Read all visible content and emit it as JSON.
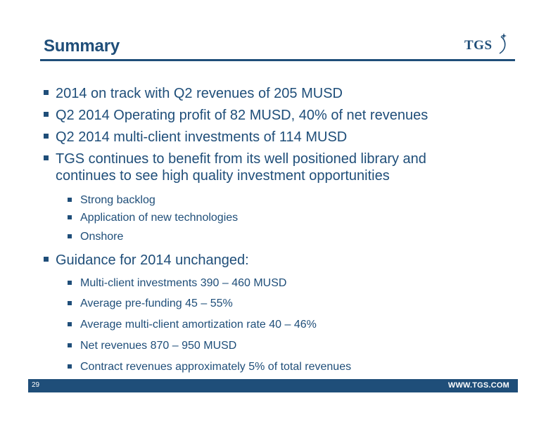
{
  "header": {
    "title": "Summary",
    "logo_text": "TGS"
  },
  "bullets": [
    {
      "level": 1,
      "text": "2014 on track with Q2 revenues of 205 MUSD"
    },
    {
      "level": 1,
      "text": "Q2 2014 Operating profit of 82 MUSD, 40% of net revenues"
    },
    {
      "level": 1,
      "text": "Q2 2014 multi-client investments of 114 MUSD"
    },
    {
      "level": 1,
      "text": "TGS continues to benefit from its well positioned library and continues to see high quality investment opportunities"
    },
    {
      "level": 2,
      "text": "Strong backlog"
    },
    {
      "level": 2,
      "text": "Application of new technologies"
    },
    {
      "level": 2,
      "text": "Onshore"
    },
    {
      "level": 1,
      "text": "Guidance for 2014 unchanged:"
    },
    {
      "level": 2,
      "text": "Multi-client investments  390 – 460 MUSD"
    },
    {
      "level": 2,
      "text": "Average pre-funding 45 – 55%"
    },
    {
      "level": 2,
      "text": "Average multi-client amortization rate 40 – 46%"
    },
    {
      "level": 2,
      "text": "Net revenues  870 – 950 MUSD"
    },
    {
      "level": 2,
      "text": "Contract revenues approximately 5% of total revenues"
    }
  ],
  "footer": {
    "page_number": "29",
    "url": "WWW.TGS.COM"
  },
  "colors": {
    "brand": "#1f4e79",
    "background": "#ffffff"
  }
}
